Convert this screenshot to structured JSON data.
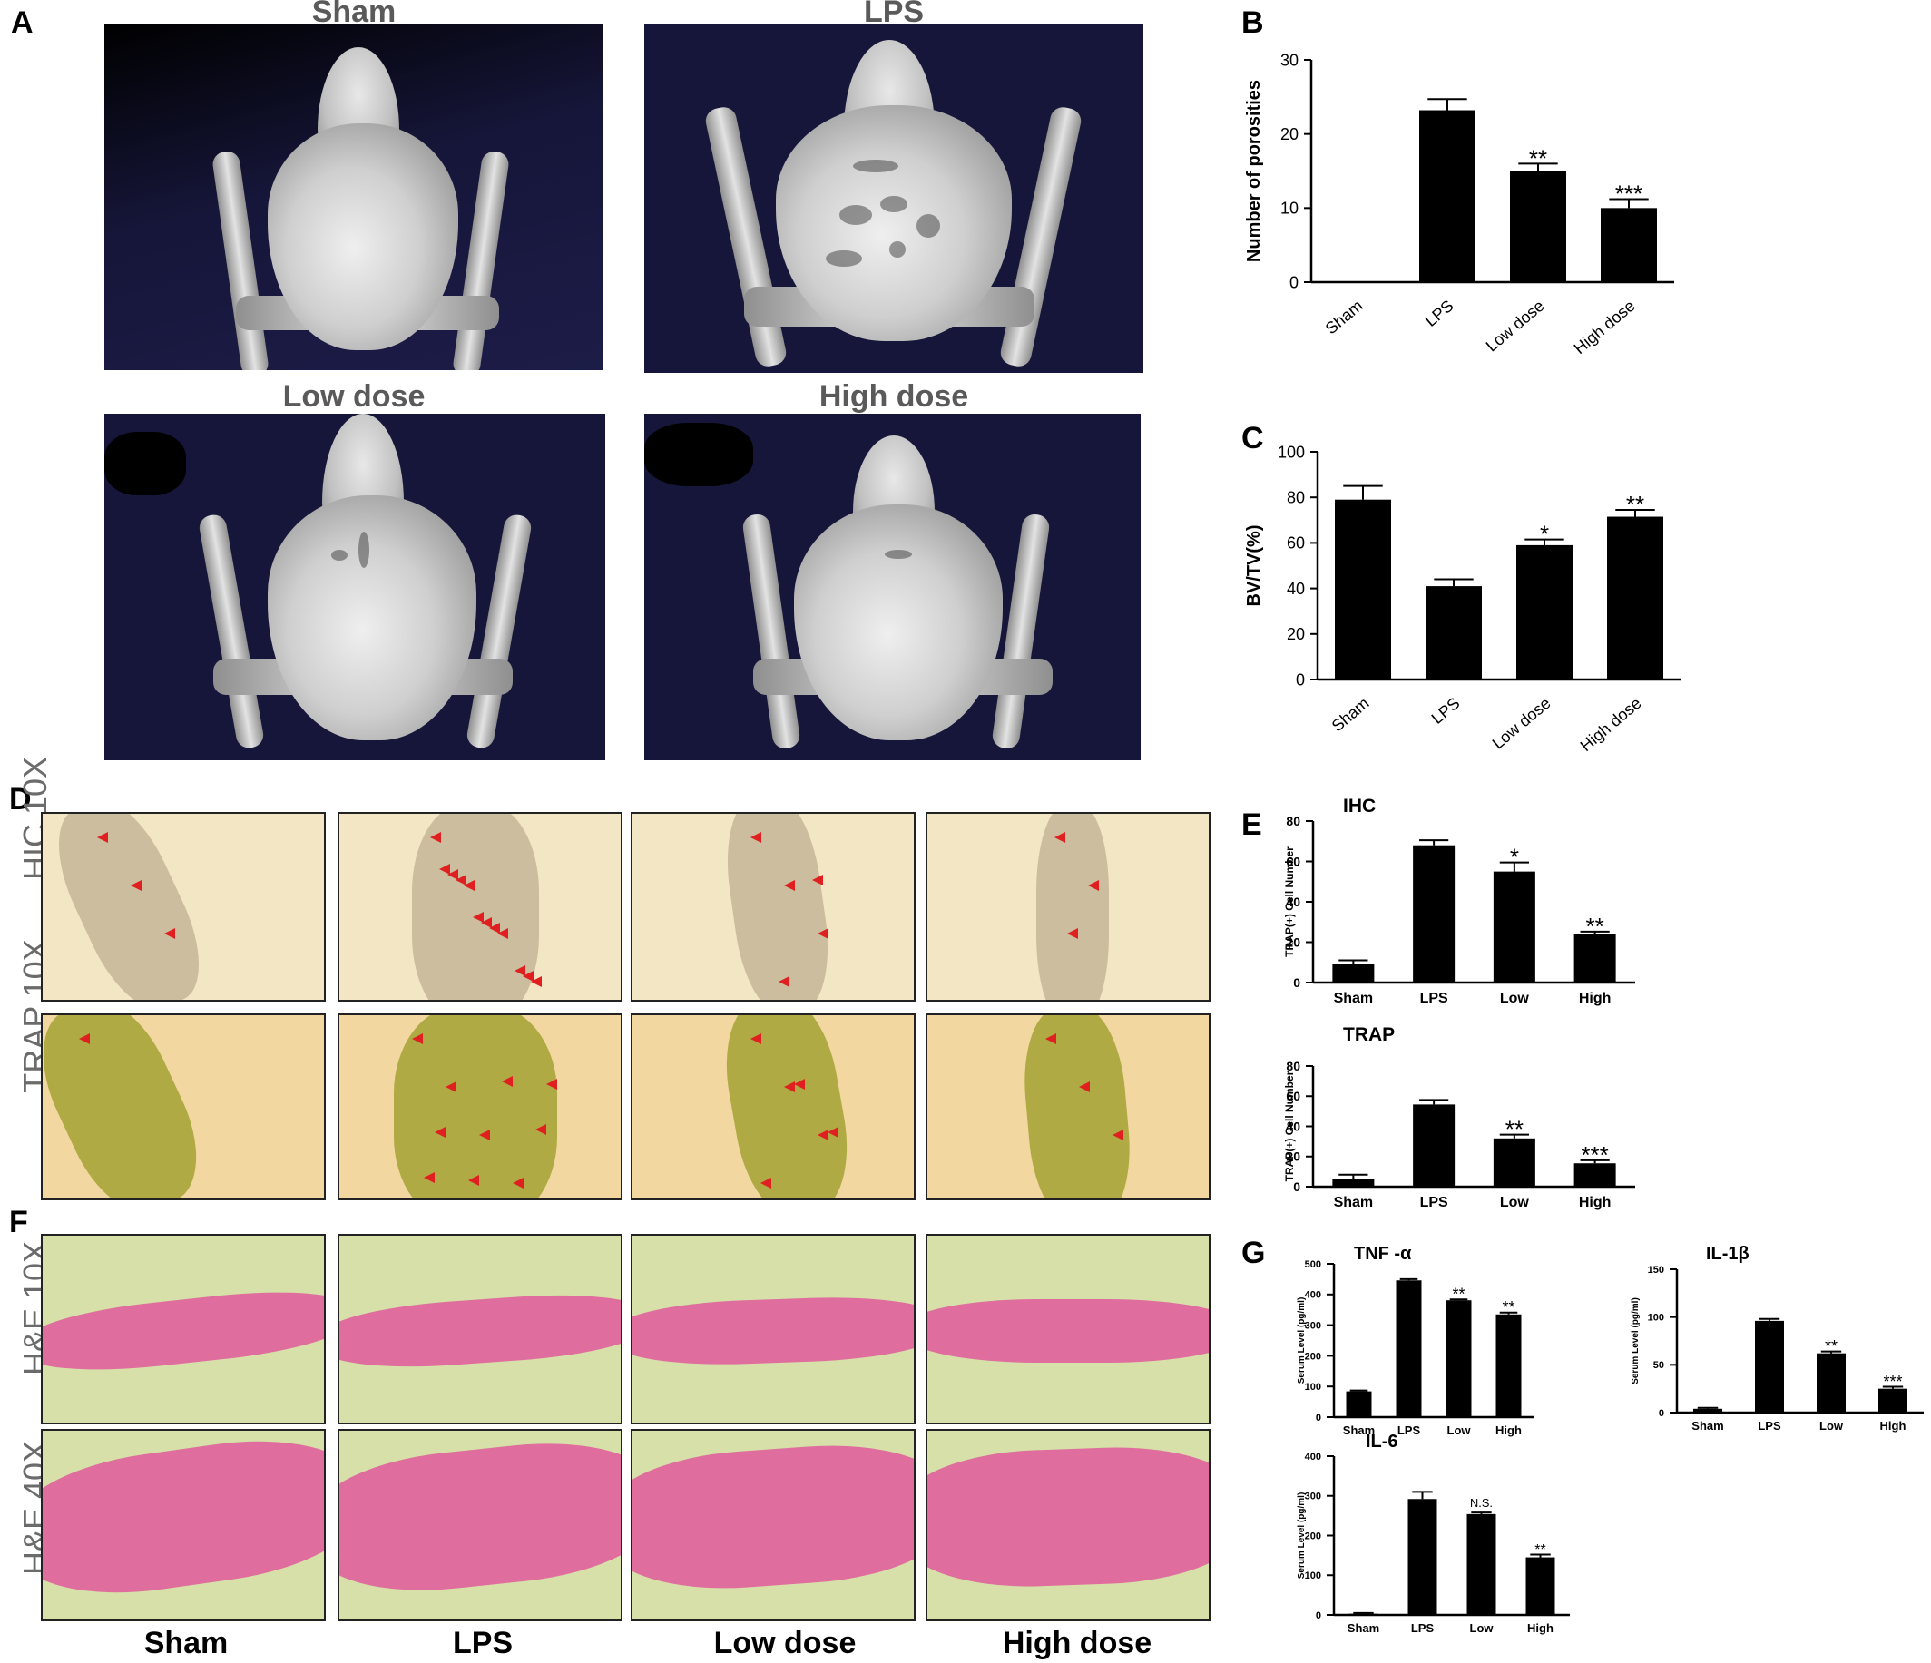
{
  "panels": {
    "A": "A",
    "B": "B",
    "C": "C",
    "D": "D",
    "E": "E",
    "F": "F",
    "G": "G"
  },
  "ct_titles": [
    "Sham",
    "LPS",
    "Low dose",
    "High dose"
  ],
  "histo_rows": {
    "D": [
      "HIC 10X",
      "TRAP 10X"
    ],
    "F": [
      "H&E 10X",
      "H&E 40X"
    ]
  },
  "column_labels": [
    "Sham",
    "LPS",
    "Low dose",
    "High dose"
  ],
  "colors": {
    "ct_bg": "#16163a",
    "bar": "#000000",
    "ihc_bg": "#f3e6c4",
    "trap_bg": "#f2d7a0",
    "he_bg": "#d6e0a8",
    "he_tissue": "#e0609c",
    "arrow": "#e02020"
  },
  "chart_data": [
    {
      "id": "B",
      "type": "bar",
      "categories": [
        "Sham",
        "LPS",
        "Low dose",
        "High  dose"
      ],
      "values": [
        0,
        23.2,
        15,
        10
      ],
      "errors": [
        0,
        1.5,
        1.0,
        1.2
      ],
      "significance": [
        "",
        "",
        "**",
        "***"
      ],
      "ylabel": "Number of porosities",
      "ylim": [
        0,
        30
      ],
      "yticks": [
        0,
        10,
        20,
        30
      ]
    },
    {
      "id": "C",
      "type": "bar",
      "categories": [
        "Sham",
        "LPS",
        "Low dose",
        "High dose"
      ],
      "values": [
        79,
        41,
        59,
        71.5
      ],
      "errors": [
        6,
        3,
        2.5,
        3
      ],
      "significance": [
        "",
        "",
        "*",
        "**"
      ],
      "ylabel": "BV/TV(%)",
      "ylim": [
        0,
        100
      ],
      "yticks": [
        0,
        20,
        40,
        60,
        80,
        100
      ]
    },
    {
      "id": "E-IHC",
      "type": "bar",
      "title": "IHC",
      "categories": [
        "Sham",
        "LPS",
        "Low",
        "High"
      ],
      "values": [
        9,
        68,
        55,
        24
      ],
      "errors": [
        2,
        2.5,
        4.5,
        1.2
      ],
      "significance": [
        "",
        "",
        "*",
        "**"
      ],
      "ylabel": "TRAP(+) Cell Number",
      "ylim": [
        0,
        80
      ],
      "yticks": [
        0,
        20,
        40,
        60,
        80
      ]
    },
    {
      "id": "E-TRAP",
      "type": "bar",
      "title": "TRAP",
      "categories": [
        "Sham",
        "LPS",
        "Low",
        "High"
      ],
      "values": [
        5,
        54.5,
        32,
        15.5
      ],
      "errors": [
        3,
        3,
        2.5,
        2
      ],
      "significance": [
        "",
        "",
        "**",
        "***"
      ],
      "ylabel": "TRAP(+) Cell Number",
      "ylim": [
        0,
        80
      ],
      "yticks": [
        0,
        20,
        40,
        60,
        80
      ]
    },
    {
      "id": "G-TNF",
      "type": "bar",
      "title": "TNF -α",
      "categories": [
        "Sham",
        "LPS",
        "Low",
        "High"
      ],
      "values": [
        84,
        446,
        381,
        335
      ],
      "errors": [
        3,
        4,
        3,
        6
      ],
      "significance": [
        "",
        "",
        "**",
        "**"
      ],
      "ylabel": "Serum Level (pg/ml)",
      "ylim": [
        0,
        500
      ],
      "yticks": [
        0,
        100,
        200,
        300,
        400,
        500
      ]
    },
    {
      "id": "G-IL1",
      "type": "bar",
      "title": "IL-1β",
      "categories": [
        "Sham",
        "LPS",
        "Low",
        "High"
      ],
      "values": [
        4,
        96,
        62,
        25
      ],
      "errors": [
        1,
        2,
        2,
        2
      ],
      "significance": [
        "",
        "",
        "**",
        "***"
      ],
      "ylabel": "Serum Level (pg/ml)",
      "ylim": [
        0,
        150
      ],
      "yticks": [
        0,
        50,
        100,
        150
      ]
    },
    {
      "id": "G-IL6",
      "type": "bar",
      "title": "IL-6",
      "categories": [
        "Sham",
        "LPS",
        "Low",
        "High"
      ],
      "values": [
        3,
        292,
        254,
        145
      ],
      "errors": [
        2,
        18,
        4,
        7
      ],
      "significance": [
        "",
        "",
        "N.S.",
        "**"
      ],
      "ylabel": "Serum Level (pg/ml)",
      "ylim": [
        0,
        400
      ],
      "yticks": [
        0,
        100,
        200,
        300,
        400
      ]
    }
  ]
}
